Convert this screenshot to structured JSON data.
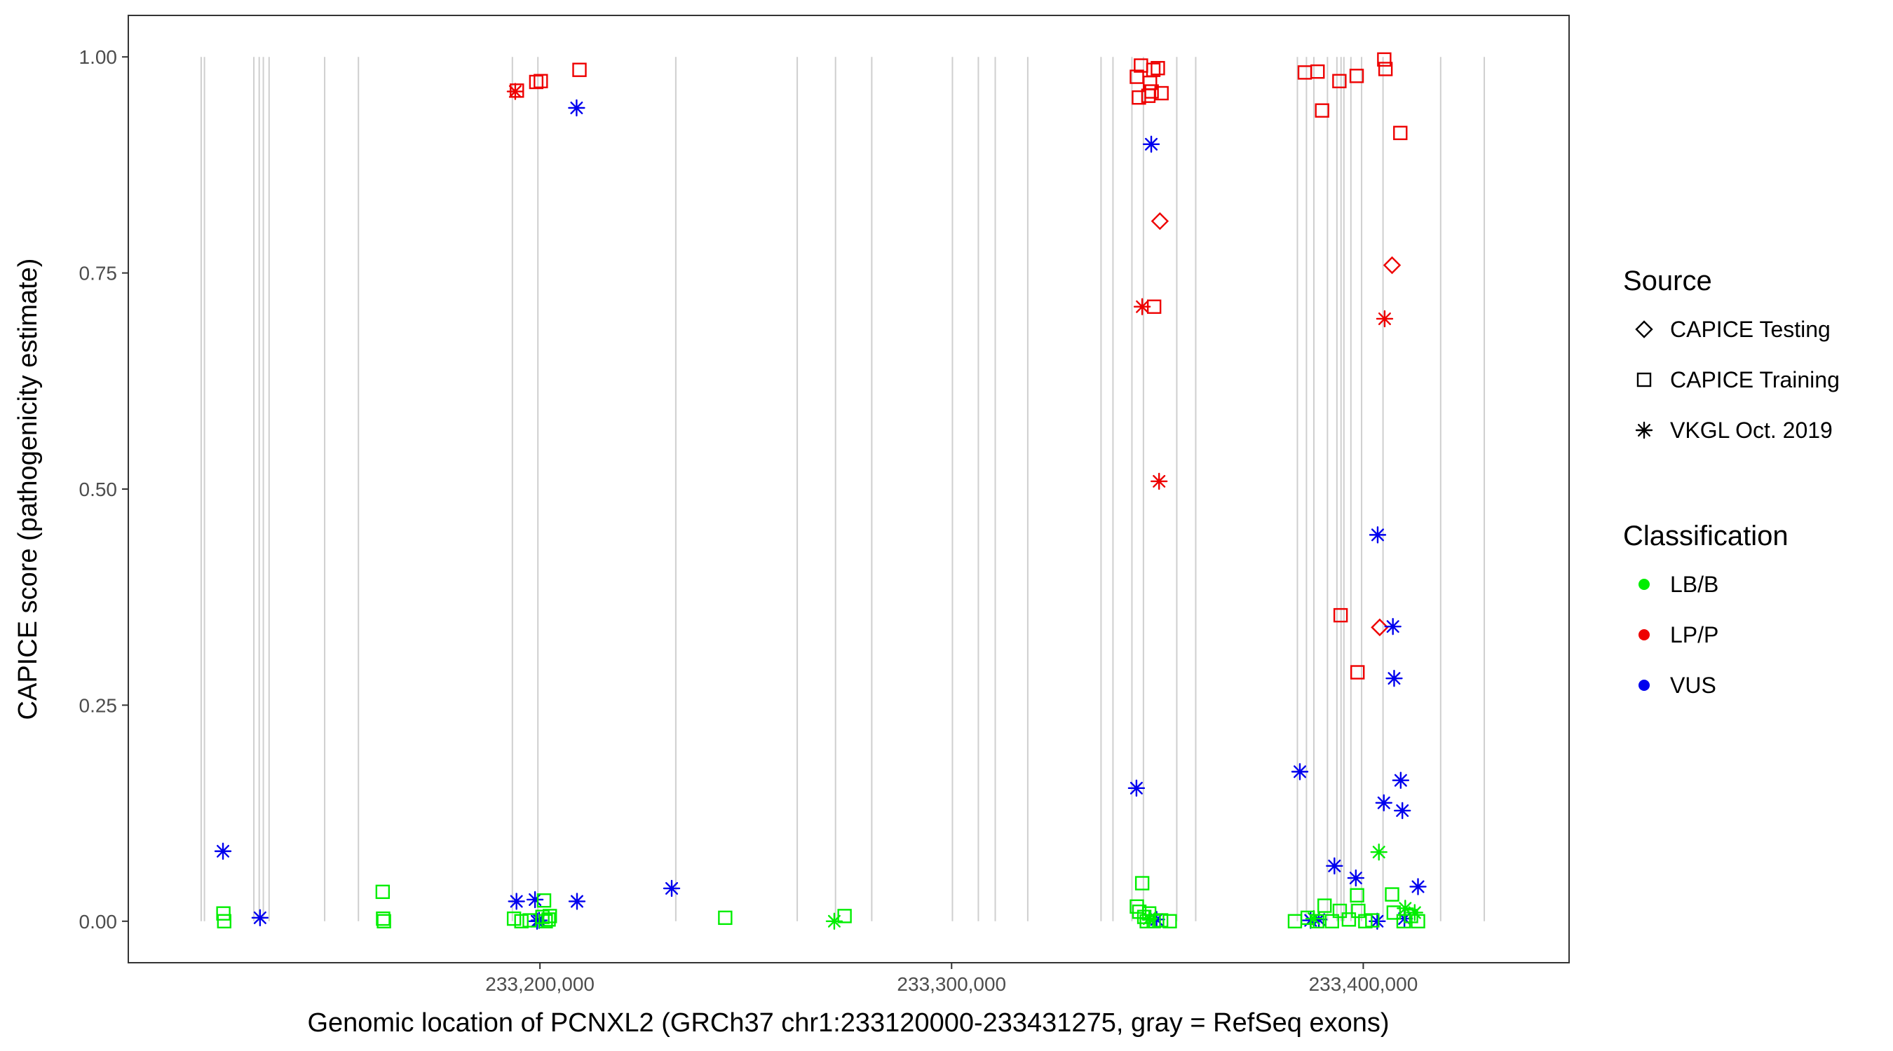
{
  "chart_data": {
    "type": "scatter",
    "xlabel": "Genomic location of PCNXL2 (GRCh37 chr1:233120000-233431275, gray = RefSeq exons)",
    "ylabel": "CAPICE score (pathogenicity estimate)",
    "xlim": [
      233100000,
      233450000
    ],
    "ylim": [
      -0.048,
      1.048
    ],
    "x_ticks": [
      233200000,
      233300000,
      233400000
    ],
    "x_tick_labels": [
      "233,200,000",
      "233,300,000",
      "233,400,000"
    ],
    "y_ticks": [
      0,
      0.25,
      0.5,
      0.75,
      1
    ],
    "y_tick_labels": [
      "0.00",
      "0.25",
      "0.50",
      "0.75",
      "1.00"
    ],
    "grid": false,
    "legend_position": "right",
    "exons": [
      233117700,
      233118500,
      233130500,
      233131800,
      233132800,
      233134200,
      233147700,
      233155900,
      233193300,
      233199500,
      233233000,
      233262500,
      233271800,
      233280600,
      233300200,
      233306500,
      233310600,
      233318500,
      233336300,
      233339200,
      233343800,
      233346600,
      233354700,
      233359300,
      233384000,
      233386200,
      233388000,
      233391300,
      233393600,
      233394600,
      233395300,
      233397000,
      233399600,
      233404800,
      233418800,
      233429400
    ],
    "legends": {
      "source": {
        "title": "Source",
        "items": [
          {
            "label": "CAPICE Testing",
            "shape": "diamond"
          },
          {
            "label": "CAPICE Training",
            "shape": "square"
          },
          {
            "label": "VKGL Oct. 2019",
            "shape": "asterisk"
          }
        ]
      },
      "classification": {
        "title": "Classification",
        "items": [
          {
            "label": "LB/B",
            "color": "#00ee00"
          },
          {
            "label": "LP/P",
            "color": "#ee0000"
          },
          {
            "label": "VUS",
            "color": "#0000ee"
          }
        ]
      }
    },
    "series": [
      {
        "classification": "LP/P",
        "source": "CAPICE Training",
        "points": [
          [
            233194400,
            0.961
          ],
          [
            233199100,
            0.971
          ],
          [
            233200200,
            0.972
          ],
          [
            233209600,
            0.985
          ],
          [
            233345000,
            0.977
          ],
          [
            233345500,
            0.953
          ],
          [
            233346000,
            0.99
          ],
          [
            233347800,
            0.955
          ],
          [
            233348200,
            0.97
          ],
          [
            233348600,
            0.96
          ],
          [
            233349000,
            0.985
          ],
          [
            233349200,
            0.711
          ],
          [
            233350100,
            0.987
          ],
          [
            233351000,
            0.958
          ],
          [
            233385800,
            0.982
          ],
          [
            233388900,
            0.983
          ],
          [
            233390000,
            0.938
          ],
          [
            233394200,
            0.972
          ],
          [
            233398400,
            0.978
          ],
          [
            233405100,
            0.997
          ],
          [
            233405400,
            0.986
          ],
          [
            233409000,
            0.912
          ],
          [
            233394500,
            0.354
          ],
          [
            233398600,
            0.288
          ]
        ]
      },
      {
        "classification": "LP/P",
        "source": "CAPICE Testing",
        "points": [
          [
            233350600,
            0.81
          ],
          [
            233407000,
            0.759
          ],
          [
            233404000,
            0.34
          ]
        ]
      },
      {
        "classification": "LP/P",
        "source": "VKGL Oct. 2019",
        "points": [
          [
            233194000,
            0.96
          ],
          [
            233346300,
            0.711
          ],
          [
            233350400,
            0.509
          ],
          [
            233405200,
            0.697
          ]
        ]
      },
      {
        "classification": "VUS",
        "source": "VKGL Oct. 2019",
        "points": [
          [
            233208900,
            0.941
          ],
          [
            233348500,
            0.899
          ],
          [
            233123000,
            0.081
          ],
          [
            233132000,
            0.004
          ],
          [
            233194300,
            0.023
          ],
          [
            233198800,
            0.025
          ],
          [
            233199300,
            0.0
          ],
          [
            233199800,
            0.001
          ],
          [
            233209000,
            0.023
          ],
          [
            233232000,
            0.038
          ],
          [
            233344900,
            0.154
          ],
          [
            233349800,
            0.002
          ],
          [
            233384600,
            0.173
          ],
          [
            233393000,
            0.064
          ],
          [
            233398200,
            0.05
          ],
          [
            233403500,
            0.447
          ],
          [
            233405000,
            0.137
          ],
          [
            233407200,
            0.341
          ],
          [
            233407500,
            0.281
          ],
          [
            233409100,
            0.163
          ],
          [
            233409500,
            0.128
          ],
          [
            233413300,
            0.04
          ],
          [
            233387200,
            0.001
          ],
          [
            233389200,
            0.002
          ],
          [
            233403400,
            0.0
          ],
          [
            233410000,
            0.003
          ]
        ]
      },
      {
        "classification": "LB/B",
        "source": "CAPICE Training",
        "points": [
          [
            233123100,
            0.009
          ],
          [
            233123300,
            0.0
          ],
          [
            233161800,
            0.034
          ],
          [
            233161900,
            0.003
          ],
          [
            233162100,
            0.0
          ],
          [
            233193700,
            0.003
          ],
          [
            233195500,
            0.0
          ],
          [
            233197500,
            0.001
          ],
          [
            233200600,
            0.005
          ],
          [
            233201000,
            0.024
          ],
          [
            233201400,
            0.0
          ],
          [
            233202100,
            0.002
          ],
          [
            233202400,
            0.006
          ],
          [
            233245000,
            0.004
          ],
          [
            233274000,
            0.006
          ],
          [
            233345000,
            0.017
          ],
          [
            233345600,
            0.011
          ],
          [
            233346300,
            0.044
          ],
          [
            233346800,
            0.005
          ],
          [
            233347400,
            0.0
          ],
          [
            233348000,
            0.009
          ],
          [
            233349100,
            0.0
          ],
          [
            233350900,
            0.001
          ],
          [
            233353000,
            0.0
          ],
          [
            233383400,
            0.0
          ],
          [
            233386500,
            0.004
          ],
          [
            233388800,
            0.0
          ],
          [
            233390600,
            0.018
          ],
          [
            233392400,
            0.0
          ],
          [
            233394300,
            0.012
          ],
          [
            233396500,
            0.002
          ],
          [
            233398500,
            0.03
          ],
          [
            233398800,
            0.012
          ],
          [
            233400500,
            0.0
          ],
          [
            233402200,
            0.001
          ],
          [
            233407000,
            0.031
          ],
          [
            233407400,
            0.01
          ],
          [
            233409800,
            0.0
          ],
          [
            233411600,
            0.006
          ],
          [
            233413300,
            0.0
          ]
        ]
      },
      {
        "classification": "LB/B",
        "source": "VKGL Oct. 2019",
        "points": [
          [
            233271500,
            0.0
          ],
          [
            233403800,
            0.08
          ],
          [
            233410200,
            0.015
          ],
          [
            233412500,
            0.01
          ],
          [
            233348000,
            0.003
          ],
          [
            233388000,
            0.003
          ]
        ]
      }
    ]
  }
}
